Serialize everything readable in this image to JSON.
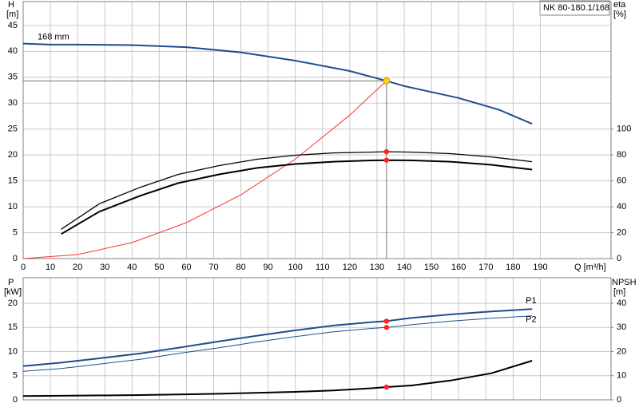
{
  "chart_data": [
    {
      "type": "line",
      "label": "NK 80-180.1/168",
      "ylabel": "H",
      "ylabel_unit": "[m]",
      "y2label": "eta",
      "y2label_unit": "[%]",
      "xlabel": "Q [m³/h]",
      "xlim": [
        0,
        216
      ],
      "xticks": [
        0,
        10,
        20,
        30,
        40,
        50,
        60,
        70,
        80,
        90,
        100,
        110,
        120,
        130,
        140,
        150,
        160,
        170,
        180,
        190
      ],
      "ylim": [
        0,
        49.6
      ],
      "yticks": [
        0,
        5,
        10,
        15,
        20,
        25,
        30,
        35,
        40,
        45
      ],
      "y2lim": [
        0,
        198.4
      ],
      "y2ticks": [
        0,
        20,
        40,
        60,
        80,
        100
      ],
      "grid": true,
      "operating_point": {
        "x": 133.5,
        "y": 34.3,
        "color": "#ffd21f",
        "line_color": "#707070"
      },
      "series": [
        {
          "name": "168 mm",
          "color": "#1f4e8c",
          "line_width": 2,
          "axis": "y",
          "x": [
            0,
            10,
            20,
            40,
            60,
            80,
            100,
            120,
            133.5,
            140,
            160,
            175,
            187
          ],
          "values": [
            41.5,
            41.3,
            41.3,
            41.2,
            40.8,
            39.8,
            38.2,
            36.2,
            34.3,
            33.3,
            31,
            28.7,
            26
          ]
        },
        {
          "color": "#ff3030",
          "line_width": 1,
          "axis": "y",
          "x": [
            0,
            20,
            40,
            60,
            80,
            100,
            120,
            133.5
          ],
          "values": [
            0,
            0.77,
            3.08,
            6.93,
            12.3,
            19.2,
            27.7,
            34.3
          ]
        },
        {
          "color": "#000000",
          "line_width": 1.3,
          "axis": "y2",
          "marker_color": "#ff2020",
          "x": [
            14,
            28,
            43,
            57,
            72,
            86,
            100,
            114,
            128,
            133.5,
            143,
            157,
            172,
            187
          ],
          "values": [
            22.7,
            42.3,
            55,
            65,
            71.8,
            76.7,
            79.8,
            81.6,
            82.2,
            82.5,
            82.2,
            81,
            78.5,
            74.8
          ]
        },
        {
          "color": "#000000",
          "line_width": 2,
          "axis": "y2",
          "marker_color": "#ff2020",
          "x": [
            14,
            28,
            43,
            57,
            72,
            86,
            100,
            114,
            128,
            133.5,
            143,
            157,
            172,
            187
          ],
          "values": [
            19,
            36.2,
            48.5,
            58.3,
            65,
            70,
            73,
            74.8,
            75.8,
            76,
            75.8,
            74.8,
            72.4,
            68.7
          ]
        }
      ]
    },
    {
      "type": "line",
      "ylabel": "P",
      "ylabel_unit": "[kW]",
      "y2label": "NPSH",
      "y2label_unit": "[m]",
      "xlim": [
        0,
        216
      ],
      "ylim": [
        0,
        25.3
      ],
      "yticks": [
        0,
        5,
        10,
        15,
        20
      ],
      "y2lim": [
        0,
        50.6
      ],
      "y2ticks": [
        0,
        10,
        20,
        30,
        40
      ],
      "grid": true,
      "operating_point": {
        "x": 133.5
      },
      "series": [
        {
          "name": "P1",
          "color": "#1f4e8c",
          "line_width": 2,
          "axis": "y",
          "marker_color": "#ff2020",
          "x": [
            0,
            14,
            28,
            43,
            57,
            72,
            86,
            100,
            114,
            128,
            133.5,
            143,
            157,
            172,
            187
          ],
          "values": [
            7.0,
            7.7,
            8.6,
            9.6,
            10.8,
            12.1,
            13.3,
            14.4,
            15.4,
            16.1,
            16.3,
            17.0,
            17.7,
            18.3,
            18.8
          ]
        },
        {
          "name": "P2",
          "color": "#1f4e8c",
          "line_width": 1,
          "axis": "y",
          "marker_color": "#ff2020",
          "x": [
            0,
            14,
            28,
            43,
            57,
            72,
            86,
            100,
            114,
            128,
            133.5,
            143,
            157,
            172,
            187
          ],
          "values": [
            5.9,
            6.5,
            7.4,
            8.4,
            9.6,
            10.8,
            12,
            13.1,
            14.1,
            14.8,
            15.0,
            15.6,
            16.3,
            16.9,
            17.4
          ]
        },
        {
          "color": "#000000",
          "line_width": 2,
          "axis": "y2",
          "marker_color": "#ff2020",
          "x": [
            0,
            14,
            43,
            72,
            100,
            114,
            128,
            133.5,
            143,
            157,
            172,
            187
          ],
          "values": [
            1.6,
            1.7,
            2.0,
            2.5,
            3.3,
            3.9,
            4.8,
            5.3,
            6.0,
            8,
            11,
            16.2
          ]
        }
      ]
    }
  ]
}
